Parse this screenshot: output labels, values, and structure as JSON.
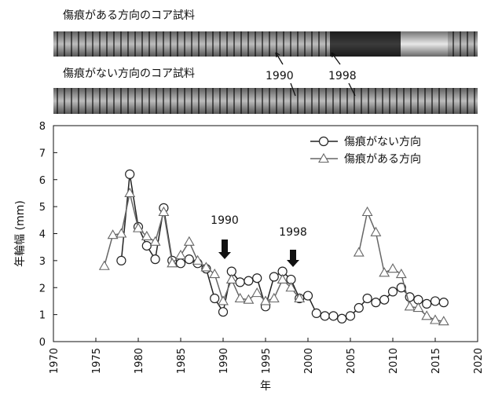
{
  "photos": [
    {
      "label": "傷痕がある方向のコア試料"
    },
    {
      "label": "傷痕がない方向のコア試料"
    }
  ],
  "photo_annotations": [
    "1990",
    "1998"
  ],
  "chart_data": {
    "type": "line",
    "xlabel": "年",
    "ylabel": "年輪幅 (mm)",
    "x": [
      1976,
      1977,
      1978,
      1979,
      1980,
      1981,
      1982,
      1983,
      1984,
      1985,
      1986,
      1987,
      1988,
      1989,
      1990,
      1991,
      1992,
      1993,
      1994,
      1995,
      1996,
      1997,
      1998,
      1999,
      2000,
      2001,
      2002,
      2003,
      2004,
      2005,
      2006,
      2007,
      2008,
      2009,
      2010,
      2011,
      2012,
      2013,
      2014,
      2015,
      2016
    ],
    "series": [
      {
        "name": "傷痕がない方向",
        "color": "#222",
        "marker": "circle",
        "values": [
          null,
          null,
          3.0,
          6.2,
          4.25,
          3.55,
          3.05,
          4.95,
          3.0,
          2.9,
          3.05,
          2.9,
          2.7,
          1.6,
          1.1,
          2.6,
          2.2,
          2.25,
          2.35,
          1.3,
          2.4,
          2.6,
          2.3,
          1.6,
          1.7,
          1.05,
          0.95,
          0.95,
          0.85,
          0.95,
          1.25,
          1.6,
          1.45,
          1.55,
          1.85,
          2.0,
          1.65,
          1.55,
          1.4,
          1.5,
          1.45
        ]
      },
      {
        "name": "傷痕がある方向",
        "color": "#666",
        "marker": "triangle",
        "values": [
          2.8,
          3.95,
          4.0,
          5.5,
          4.2,
          3.9,
          3.7,
          4.8,
          2.9,
          3.2,
          3.7,
          3.0,
          2.75,
          2.5,
          1.5,
          2.3,
          1.6,
          1.55,
          1.8,
          1.5,
          1.6,
          2.3,
          2.0,
          1.6,
          null,
          null,
          null,
          null,
          null,
          null,
          3.3,
          4.8,
          4.05,
          2.55,
          2.7,
          2.5,
          1.3,
          1.25,
          0.95,
          0.8,
          0.75
        ]
      }
    ],
    "annotations": [
      "1990",
      "1998"
    ],
    "xlim": [
      1970,
      2020
    ],
    "xticks": [
      1970,
      1975,
      1980,
      1985,
      1990,
      1995,
      2000,
      2005,
      2010,
      2015,
      2020
    ],
    "ylim": [
      0,
      8
    ],
    "yticks": [
      0,
      1,
      2,
      3,
      4,
      5,
      6,
      7,
      8
    ],
    "legend": "upper right"
  }
}
